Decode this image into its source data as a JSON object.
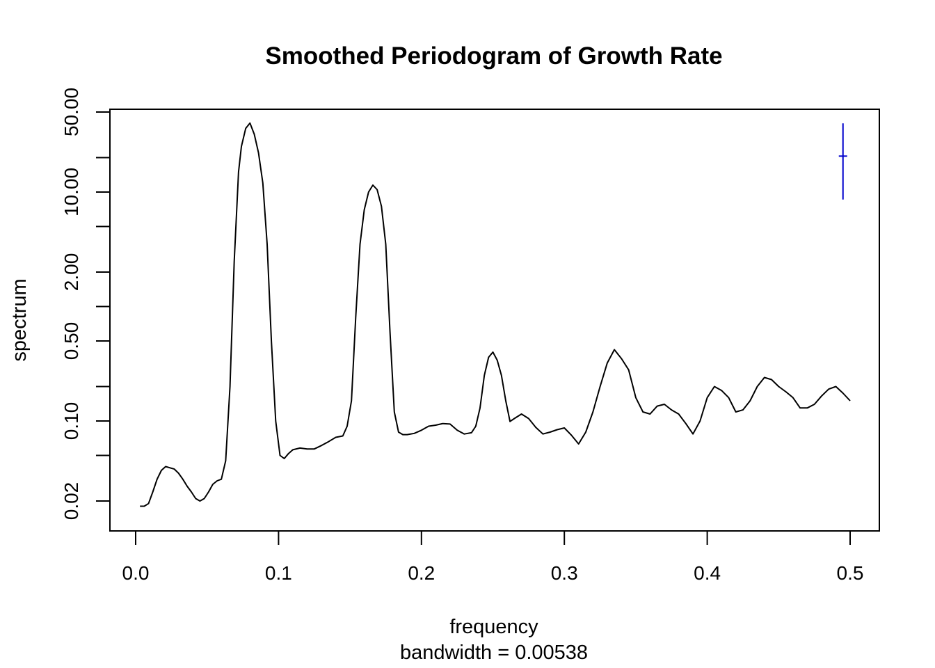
{
  "chart_data": {
    "type": "line",
    "title": "Smoothed Periodogram of Growth Rate",
    "xlabel": "frequency",
    "sublabel": "bandwidth = 0.00538",
    "ylabel": "spectrum",
    "y_scale": "log",
    "xlim": [
      0.0,
      0.5
    ],
    "ylim": [
      0.016,
      60
    ],
    "x_ticks": [
      {
        "value": 0.0,
        "label": "0.0"
      },
      {
        "value": 0.1,
        "label": "0.1"
      },
      {
        "value": 0.2,
        "label": "0.2"
      },
      {
        "value": 0.3,
        "label": "0.3"
      },
      {
        "value": 0.4,
        "label": "0.4"
      },
      {
        "value": 0.5,
        "label": "0.5"
      }
    ],
    "y_ticks": [
      {
        "value": 0.02,
        "label": "0.02"
      },
      {
        "value": 0.05,
        "label": ""
      },
      {
        "value": 0.1,
        "label": "0.10"
      },
      {
        "value": 0.2,
        "label": ""
      },
      {
        "value": 0.5,
        "label": "0.50"
      },
      {
        "value": 1.0,
        "label": ""
      },
      {
        "value": 2.0,
        "label": "2.00"
      },
      {
        "value": 5.0,
        "label": ""
      },
      {
        "value": 10.0,
        "label": "10.00"
      },
      {
        "value": 20.0,
        "label": ""
      },
      {
        "value": 50.0,
        "label": "50.00"
      }
    ],
    "grid": false,
    "line_color": "#000000",
    "ci_bar": {
      "x": 0.495,
      "center": 20.6,
      "low": 8.6,
      "high": 39.8,
      "color": "#0000cc"
    },
    "series": [
      {
        "x": [
          0.003,
          0.006,
          0.009,
          0.012,
          0.015,
          0.018,
          0.021,
          0.024,
          0.027,
          0.03,
          0.033,
          0.036,
          0.039,
          0.042,
          0.045,
          0.048,
          0.051,
          0.054,
          0.057,
          0.06,
          0.063,
          0.066,
          0.069,
          0.072,
          0.074,
          0.077,
          0.08,
          0.083,
          0.086,
          0.089,
          0.092,
          0.095,
          0.098,
          0.101,
          0.104,
          0.107,
          0.11,
          0.115,
          0.12,
          0.125,
          0.13,
          0.135,
          0.14,
          0.145,
          0.148,
          0.151,
          0.154,
          0.157,
          0.16,
          0.163,
          0.166,
          0.169,
          0.172,
          0.175,
          0.178,
          0.181,
          0.184,
          0.187,
          0.19,
          0.195,
          0.2,
          0.205,
          0.21,
          0.215,
          0.22,
          0.225,
          0.23,
          0.235,
          0.238,
          0.241,
          0.244,
          0.247,
          0.25,
          0.253,
          0.256,
          0.259,
          0.262,
          0.265,
          0.27,
          0.275,
          0.28,
          0.285,
          0.29,
          0.295,
          0.3,
          0.305,
          0.31,
          0.315,
          0.32,
          0.325,
          0.33,
          0.335,
          0.34,
          0.345,
          0.35,
          0.355,
          0.36,
          0.365,
          0.37,
          0.375,
          0.38,
          0.385,
          0.39,
          0.395,
          0.4,
          0.405,
          0.41,
          0.415,
          0.42,
          0.425,
          0.43,
          0.435,
          0.44,
          0.445,
          0.45,
          0.455,
          0.46,
          0.465,
          0.47,
          0.475,
          0.48,
          0.485,
          0.49,
          0.495,
          0.5
        ],
        "values": [
          0.018,
          0.018,
          0.019,
          0.024,
          0.031,
          0.037,
          0.04,
          0.039,
          0.038,
          0.035,
          0.031,
          0.027,
          0.024,
          0.021,
          0.02,
          0.021,
          0.024,
          0.028,
          0.03,
          0.031,
          0.045,
          0.2,
          2.5,
          15,
          25,
          36,
          40,
          32,
          22,
          12,
          3.5,
          0.5,
          0.1,
          0.05,
          0.047,
          0.052,
          0.056,
          0.058,
          0.057,
          0.057,
          0.061,
          0.066,
          0.072,
          0.074,
          0.09,
          0.15,
          0.8,
          3.5,
          7.0,
          10.0,
          11.5,
          10.5,
          7.5,
          3.5,
          0.6,
          0.12,
          0.08,
          0.076,
          0.076,
          0.078,
          0.083,
          0.09,
          0.092,
          0.095,
          0.094,
          0.083,
          0.077,
          0.079,
          0.09,
          0.13,
          0.25,
          0.36,
          0.4,
          0.34,
          0.25,
          0.15,
          0.099,
          0.105,
          0.115,
          0.105,
          0.088,
          0.077,
          0.08,
          0.084,
          0.087,
          0.075,
          0.063,
          0.08,
          0.12,
          0.2,
          0.32,
          0.42,
          0.35,
          0.28,
          0.16,
          0.12,
          0.115,
          0.135,
          0.14,
          0.125,
          0.115,
          0.095,
          0.077,
          0.1,
          0.16,
          0.2,
          0.185,
          0.16,
          0.12,
          0.125,
          0.15,
          0.2,
          0.24,
          0.23,
          0.2,
          0.18,
          0.16,
          0.13,
          0.13,
          0.14,
          0.165,
          0.19,
          0.2,
          0.175,
          0.15
        ]
      }
    ]
  }
}
